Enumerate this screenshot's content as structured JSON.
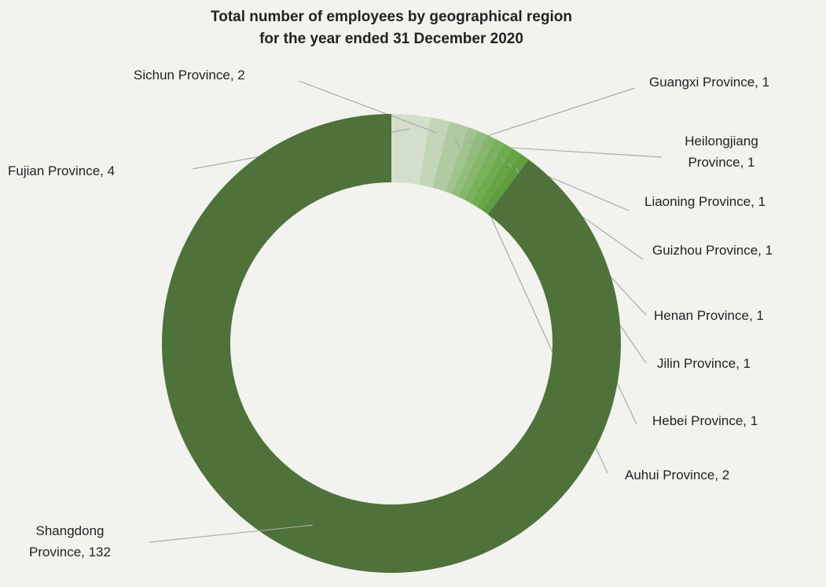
{
  "chart_data": {
    "type": "donut",
    "title": "Total number of employees by geographical region\nfor the year ended 31 December 2020",
    "values": [
      4,
      2,
      2,
      1,
      1,
      1,
      1,
      1,
      1,
      1,
      132
    ],
    "value_labels": [
      "Fujian Province, 4",
      "Sichun Province, 2",
      "Auhui Province, 2",
      "Guangxi Province, 1",
      "Heilongjiang\nProvince, 1",
      "Liaoning Province, 1",
      "Guizhou Province, 1",
      "Henan Province, 1",
      "Jilin Province, 1",
      "Hebei Province, 1",
      "Shangdong\nProvince, 132"
    ],
    "colors": [
      "#d3dfcb",
      "#c2d6b7",
      "#b0cba2",
      "#a1c38f",
      "#93bd7d",
      "#86b76c",
      "#7ab15d",
      "#6fab4f",
      "#66a545",
      "#5e9e3e",
      "#4e723a"
    ]
  }
}
